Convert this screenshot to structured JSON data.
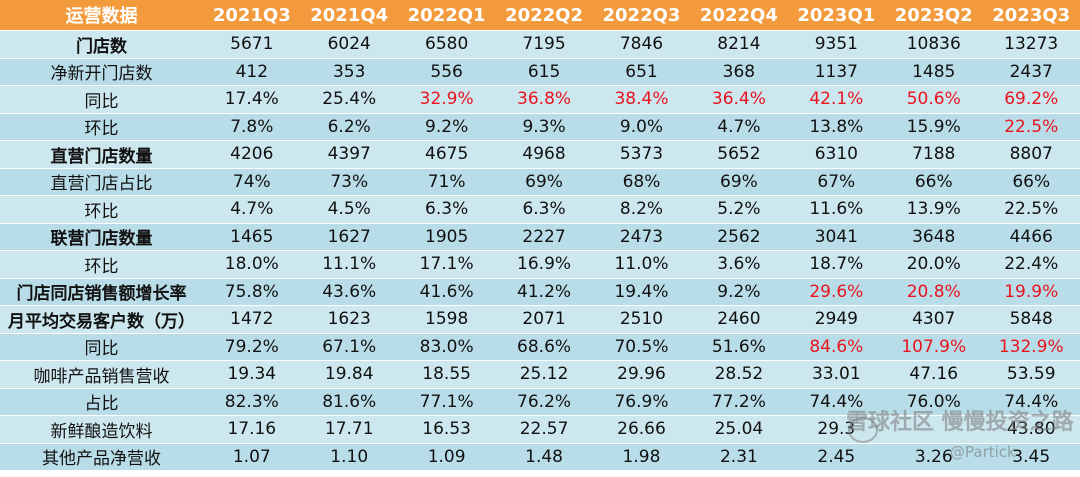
{
  "table": {
    "header": [
      "运营数据",
      "2021Q3",
      "2021Q4",
      "2022Q1",
      "2022Q2",
      "2022Q3",
      "2022Q4",
      "2023Q1",
      "2023Q2",
      "2023Q3"
    ],
    "rows": [
      {
        "label": "门店数",
        "bold": true,
        "cells": [
          "5671",
          "6024",
          "6580",
          "7195",
          "7846",
          "8214",
          "9351",
          "10836",
          "13273"
        ],
        "red": []
      },
      {
        "label": "净新开门店数",
        "bold": false,
        "cells": [
          "412",
          "353",
          "556",
          "615",
          "651",
          "368",
          "1137",
          "1485",
          "2437"
        ],
        "red": []
      },
      {
        "label": "同比",
        "bold": false,
        "cells": [
          "17.4%",
          "25.4%",
          "32.9%",
          "36.8%",
          "38.4%",
          "36.4%",
          "42.1%",
          "50.6%",
          "69.2%"
        ],
        "red": [
          2,
          3,
          4,
          5,
          6,
          7,
          8
        ]
      },
      {
        "label": "环比",
        "bold": false,
        "cells": [
          "7.8%",
          "6.2%",
          "9.2%",
          "9.3%",
          "9.0%",
          "4.7%",
          "13.8%",
          "15.9%",
          "22.5%"
        ],
        "red": [
          8
        ]
      },
      {
        "label": "直营门店数量",
        "bold": true,
        "cells": [
          "4206",
          "4397",
          "4675",
          "4968",
          "5373",
          "5652",
          "6310",
          "7188",
          "8807"
        ],
        "red": []
      },
      {
        "label": "直营门店占比",
        "bold": false,
        "cells": [
          "74%",
          "73%",
          "71%",
          "69%",
          "68%",
          "69%",
          "67%",
          "66%",
          "66%"
        ],
        "red": []
      },
      {
        "label": "环比",
        "bold": false,
        "cells": [
          "4.7%",
          "4.5%",
          "6.3%",
          "6.3%",
          "8.2%",
          "5.2%",
          "11.6%",
          "13.9%",
          "22.5%"
        ],
        "red": []
      },
      {
        "label": "联营门店数量",
        "bold": true,
        "cells": [
          "1465",
          "1627",
          "1905",
          "2227",
          "2473",
          "2562",
          "3041",
          "3648",
          "4466"
        ],
        "red": []
      },
      {
        "label": "环比",
        "bold": false,
        "cells": [
          "18.0%",
          "11.1%",
          "17.1%",
          "16.9%",
          "11.0%",
          "3.6%",
          "18.7%",
          "20.0%",
          "22.4%"
        ],
        "red": []
      },
      {
        "label": "门店同店销售额增长率",
        "bold": true,
        "cells": [
          "75.8%",
          "43.6%",
          "41.6%",
          "41.2%",
          "19.4%",
          "9.2%",
          "29.6%",
          "20.8%",
          "19.9%"
        ],
        "red": [
          6,
          7,
          8
        ]
      },
      {
        "label": "月平均交易客户数（万）",
        "bold": true,
        "cells": [
          "1472",
          "1623",
          "1598",
          "2071",
          "2510",
          "2460",
          "2949",
          "4307",
          "5848"
        ],
        "red": []
      },
      {
        "label": "同比",
        "bold": false,
        "cells": [
          "79.2%",
          "67.1%",
          "83.0%",
          "68.6%",
          "70.5%",
          "51.6%",
          "84.6%",
          "107.9%",
          "132.9%"
        ],
        "red": [
          6,
          7,
          8
        ]
      },
      {
        "label": "咖啡产品销售营收",
        "bold": false,
        "cells": [
          "19.34",
          "19.84",
          "18.55",
          "25.12",
          "29.96",
          "28.52",
          "33.01",
          "47.16",
          "53.59"
        ],
        "red": []
      },
      {
        "label": "占比",
        "bold": false,
        "cells": [
          "82.3%",
          "81.6%",
          "77.1%",
          "76.2%",
          "76.9%",
          "77.2%",
          "74.4%",
          "76.0%",
          "74.4%"
        ],
        "red": []
      },
      {
        "label": "新鲜酿造饮料",
        "bold": false,
        "cells": [
          "17.16",
          "17.71",
          "16.53",
          "22.57",
          "26.66",
          "25.04",
          "29.3",
          "",
          "43.80"
        ],
        "red": []
      },
      {
        "label": "其他产品净营收",
        "bold": false,
        "cells": [
          "1.07",
          "1.10",
          "1.09",
          "1.48",
          "1.98",
          "2.31",
          "2.45",
          "3.26",
          "3.45"
        ],
        "red": []
      }
    ]
  },
  "watermark": {
    "text": "雪球社区 慢慢投资之路",
    "author": "@Partick"
  }
}
